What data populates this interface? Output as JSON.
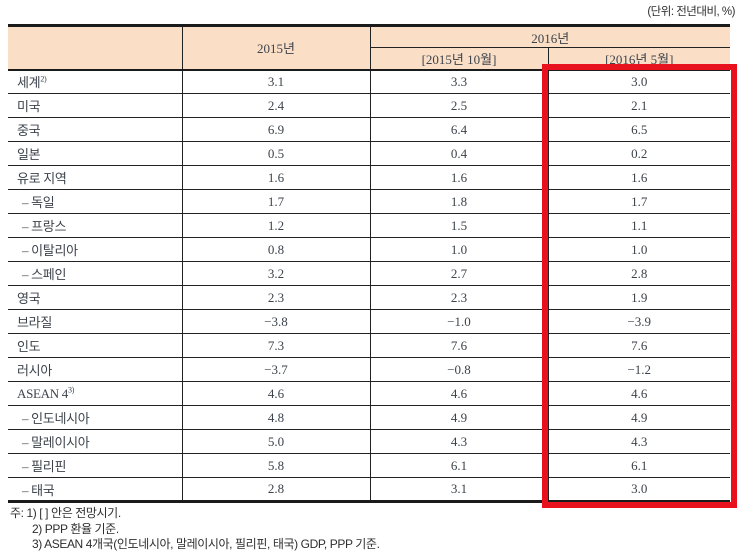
{
  "unit_label": "(단위: 전년대비, %)",
  "colors": {
    "header_bg": "#fbdec6",
    "highlight_border": "#e8121f"
  },
  "table": {
    "header": {
      "corner": "",
      "col_2015": "2015년",
      "col_2016": "2016년",
      "sub_2015_oct": "[2015년 10월]",
      "sub_2016_may": "[2016년 5월]"
    },
    "rows": [
      {
        "label": "세계",
        "sup": "2)",
        "indent": false,
        "v2015": "3.1",
        "v2015_10": "3.3",
        "v2016_5": "3.0"
      },
      {
        "label": "미국",
        "sup": "",
        "indent": false,
        "v2015": "2.4",
        "v2015_10": "2.5",
        "v2016_5": "2.1"
      },
      {
        "label": "중국",
        "sup": "",
        "indent": false,
        "v2015": "6.9",
        "v2015_10": "6.4",
        "v2016_5": "6.5"
      },
      {
        "label": "일본",
        "sup": "",
        "indent": false,
        "v2015": "0.5",
        "v2015_10": "0.4",
        "v2016_5": "0.2"
      },
      {
        "label": "유로 지역",
        "sup": "",
        "indent": false,
        "v2015": "1.6",
        "v2015_10": "1.6",
        "v2016_5": "1.6"
      },
      {
        "label": "– 독일",
        "sup": "",
        "indent": true,
        "v2015": "1.7",
        "v2015_10": "1.8",
        "v2016_5": "1.7"
      },
      {
        "label": "– 프랑스",
        "sup": "",
        "indent": true,
        "v2015": "1.2",
        "v2015_10": "1.5",
        "v2016_5": "1.1"
      },
      {
        "label": "– 이탈리아",
        "sup": "",
        "indent": true,
        "v2015": "0.8",
        "v2015_10": "1.0",
        "v2016_5": "1.0"
      },
      {
        "label": "– 스페인",
        "sup": "",
        "indent": true,
        "v2015": "3.2",
        "v2015_10": "2.7",
        "v2016_5": "2.8"
      },
      {
        "label": "영국",
        "sup": "",
        "indent": false,
        "v2015": "2.3",
        "v2015_10": "2.3",
        "v2016_5": "1.9"
      },
      {
        "label": "브라질",
        "sup": "",
        "indent": false,
        "v2015": "−3.8",
        "v2015_10": "−1.0",
        "v2016_5": "−3.9"
      },
      {
        "label": "인도",
        "sup": "",
        "indent": false,
        "v2015": "7.3",
        "v2015_10": "7.6",
        "v2016_5": "7.6"
      },
      {
        "label": "러시아",
        "sup": "",
        "indent": false,
        "v2015": "−3.7",
        "v2015_10": "−0.8",
        "v2016_5": "−1.2"
      },
      {
        "label": "ASEAN 4",
        "sup": "3)",
        "indent": false,
        "v2015": "4.6",
        "v2015_10": "4.6",
        "v2016_5": "4.6"
      },
      {
        "label": "– 인도네시아",
        "sup": "",
        "indent": true,
        "v2015": "4.8",
        "v2015_10": "4.9",
        "v2016_5": "4.9"
      },
      {
        "label": "– 말레이시아",
        "sup": "",
        "indent": true,
        "v2015": "5.0",
        "v2015_10": "4.3",
        "v2016_5": "4.3"
      },
      {
        "label": "– 필리핀",
        "sup": "",
        "indent": true,
        "v2015": "5.8",
        "v2015_10": "6.1",
        "v2016_5": "6.1"
      },
      {
        "label": "– 태국",
        "sup": "",
        "indent": true,
        "v2015": "2.8",
        "v2015_10": "3.1",
        "v2016_5": "3.0"
      }
    ]
  },
  "footnotes": [
    "주: 1) [ ] 안은 전망시기.",
    "2) PPP 환율 기준.",
    "3) ASEAN 4개국(인도네시아, 말레이시아, 필리핀, 태국) GDP, PPP 기준."
  ]
}
